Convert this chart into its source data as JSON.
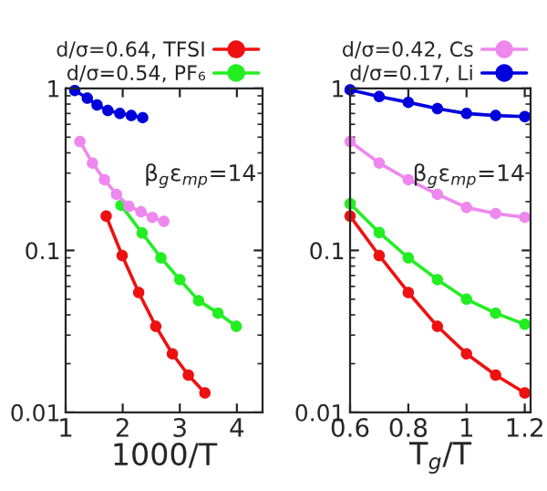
{
  "chart_data": [
    {
      "type": "line",
      "xlabel": "1000/T",
      "log": "y",
      "xlim": [
        1,
        4.45
      ],
      "xticks": [
        1,
        2,
        3,
        4
      ],
      "ylim": [
        0.01,
        1
      ],
      "yticks": [
        1,
        0.1,
        0.01
      ],
      "marker": "circle",
      "line_style": "solid",
      "legend": "top",
      "annotations": [
        "β$_{g}$ε$_{mp}$=14"
      ],
      "series": [
        {
          "name": "d/σ=0.64, TFSI",
          "color": "#ee1111",
          "x": [
            1.71,
            1.99,
            2.28,
            2.58,
            2.87,
            3.15,
            3.44
          ],
          "values": [
            0.163,
            0.093,
            0.055,
            0.034,
            0.023,
            0.017,
            0.0132
          ]
        },
        {
          "name": "d/σ=0.54, PF₆",
          "color": "#22ee22",
          "x": [
            1.97,
            2.34,
            2.67,
            3.0,
            3.33,
            3.67,
            3.99
          ],
          "values": [
            0.19,
            0.128,
            0.09,
            0.066,
            0.049,
            0.041,
            0.034
          ]
        },
        {
          "color": "#ee88ee",
          "x": [
            1.25,
            1.47,
            1.68,
            1.89,
            2.11,
            2.32,
            2.52,
            2.72
          ],
          "values": [
            0.47,
            0.346,
            0.273,
            0.222,
            0.187,
            0.173,
            0.16,
            0.151
          ]
        },
        {
          "color": "#0000dd",
          "x": [
            1.16,
            1.38,
            1.55,
            1.74,
            1.95,
            2.15,
            2.35
          ],
          "values": [
            0.97,
            0.87,
            0.79,
            0.73,
            0.7,
            0.68,
            0.66
          ]
        }
      ]
    },
    {
      "type": "line",
      "xlabel": "T$_{g}$/T",
      "log": "y",
      "xlim": [
        0.6,
        1.22
      ],
      "xticks": [
        0.6,
        0.8,
        1,
        1.2
      ],
      "ylim": [
        0.01,
        1
      ],
      "yticks": [
        1,
        0.1,
        0.01
      ],
      "marker": "circle",
      "line_style": "solid",
      "legend": "top",
      "annotations": [
        "β$_{g}$ε$_{mp}$=14"
      ],
      "series": [
        {
          "color": "#ee1111",
          "x": [
            0.6,
            0.7,
            0.8,
            0.9,
            1.0,
            1.1,
            1.2
          ],
          "values": [
            0.163,
            0.093,
            0.055,
            0.034,
            0.023,
            0.017,
            0.0132
          ]
        },
        {
          "color": "#22ee22",
          "x": [
            0.6,
            0.7,
            0.8,
            0.9,
            1.0,
            1.1,
            1.2
          ],
          "values": [
            0.194,
            0.129,
            0.09,
            0.066,
            0.05,
            0.041,
            0.035
          ]
        },
        {
          "name": "d/σ=0.42, Cs",
          "color": "#ee88ee",
          "x": [
            0.6,
            0.7,
            0.8,
            0.9,
            1.0,
            1.1,
            1.2
          ],
          "values": [
            0.47,
            0.346,
            0.273,
            0.222,
            0.184,
            0.169,
            0.16
          ]
        },
        {
          "name": "d/σ=0.17, Li",
          "color": "#0000dd",
          "x": [
            0.6,
            0.7,
            0.8,
            0.9,
            1.0,
            1.1,
            1.2
          ],
          "values": [
            0.98,
            0.89,
            0.82,
            0.75,
            0.7,
            0.68,
            0.67
          ]
        }
      ]
    }
  ]
}
